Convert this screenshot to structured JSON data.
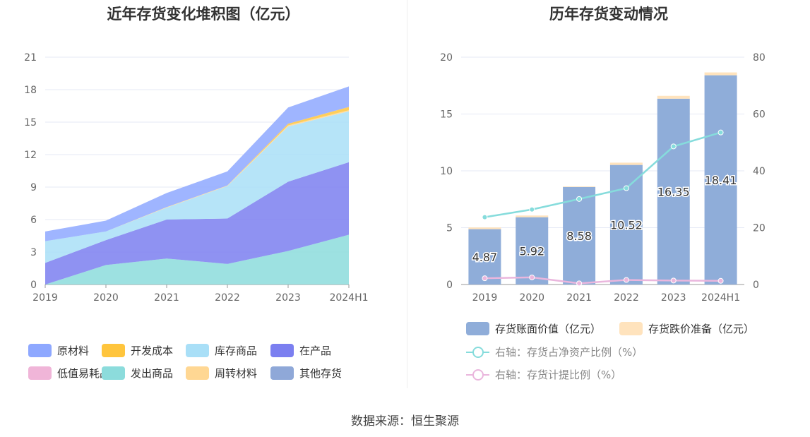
{
  "source_text": "数据来源：恒生聚源",
  "chart_data": [
    {
      "type": "area",
      "title": "近年存货变化堆积图（亿元）",
      "categories": [
        "2019",
        "2020",
        "2021",
        "2022",
        "2023",
        "2024H1"
      ],
      "yticks": [
        0,
        3,
        6,
        9,
        12,
        15,
        18,
        21
      ],
      "ylim": [
        0,
        21
      ],
      "grid": true,
      "legend_placement": "bottom",
      "series": [
        {
          "name": "原材料",
          "color": "#8ea8ff",
          "values": [
            0.9,
            1.0,
            1.3,
            1.3,
            1.5,
            1.9
          ],
          "stack_order": 5
        },
        {
          "name": "开发成本",
          "color": "#ffc53d",
          "values": [
            0,
            0,
            0,
            0,
            0.15,
            0.3
          ],
          "stack_order": 4
        },
        {
          "name": "库存商品",
          "color": "#a9dff7",
          "values": [
            2.0,
            0.8,
            1.1,
            3.0,
            5.1,
            4.7
          ],
          "stack_order": 3
        },
        {
          "name": "在产品",
          "color": "#7b7ff0",
          "values": [
            2.0,
            2.3,
            3.6,
            4.2,
            6.4,
            6.7
          ],
          "stack_order": 2
        },
        {
          "name": "低值易耗品",
          "color": "#f0b5d8",
          "values": [
            0,
            0,
            0,
            0,
            0,
            0
          ],
          "stack_order": 0
        },
        {
          "name": "发出商品",
          "color": "#8cdcdc",
          "values": [
            0.0,
            1.8,
            2.4,
            1.9,
            3.1,
            4.6
          ],
          "stack_order": 1
        },
        {
          "name": "周转材料",
          "color": "#ffd793",
          "values": [
            0,
            0,
            0.05,
            0.05,
            0.1,
            0.1
          ],
          "stack_order": 3.5
        },
        {
          "name": "其他存货",
          "color": "#8fa8d8",
          "values": [
            0,
            0,
            0,
            0,
            0,
            0
          ],
          "stack_order": 6
        }
      ]
    },
    {
      "type": "bar",
      "title": "历年存货变动情况",
      "categories": [
        "2019",
        "2020",
        "2021",
        "2022",
        "2023",
        "2024H1"
      ],
      "ylim": [
        0,
        20
      ],
      "yticks": [
        0,
        5,
        10,
        15,
        20
      ],
      "y2lim": [
        0,
        80
      ],
      "y2ticks": [
        0,
        20,
        40,
        60,
        80
      ],
      "grid": true,
      "legend_placement": "bottom",
      "bars": [
        {
          "name": "存货账面价值（亿元）",
          "color": "#8fadd9",
          "values": [
            4.87,
            5.92,
            8.58,
            10.52,
            16.35,
            18.41
          ],
          "labels": [
            "4.87",
            "5.92",
            "8.58",
            "10.52",
            "16.35",
            "18.41"
          ]
        },
        {
          "name": "存货跌价准备（亿元）",
          "color": "#ffe3bd",
          "values": [
            0.15,
            0.15,
            0.05,
            0.2,
            0.25,
            0.25
          ]
        }
      ],
      "lines": [
        {
          "name": "右轴：存货占净资产比例（%）",
          "color": "#86dcdc",
          "axis": "right",
          "values": [
            23.7,
            26.4,
            30.1,
            33.9,
            48.6,
            53.5
          ]
        },
        {
          "name": "右轴：存货计提比例（%）",
          "color": "#eab6dd",
          "axis": "right",
          "values": [
            2.2,
            2.5,
            0.4,
            1.6,
            1.4,
            1.3
          ]
        }
      ]
    }
  ]
}
